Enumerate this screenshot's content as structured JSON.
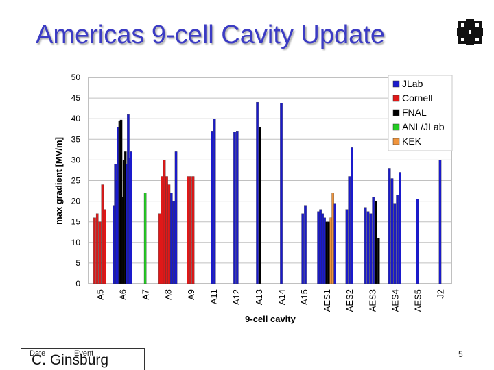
{
  "slide": {
    "title": "Americas 9-cell Cavity Update",
    "footer_date": "Date",
    "footer_event": "Event",
    "footer_author": "C. Ginsburg",
    "page_number": "5",
    "logo_icon": "fermilab-logo-icon"
  },
  "chart_data": {
    "type": "bar",
    "xlabel": "9-cell cavity",
    "ylabel": "max gradient [MV/m]",
    "ylim": [
      0,
      50
    ],
    "yticks": [
      0,
      5,
      10,
      15,
      20,
      25,
      30,
      35,
      40,
      45,
      50
    ],
    "grid": true,
    "legend_position": "top-right",
    "categories": [
      "A5",
      "A6",
      "A7",
      "A8",
      "A9",
      "A11",
      "A12",
      "A13",
      "A14",
      "A15",
      "AES1",
      "AES2",
      "AES3",
      "AES4",
      "AES5",
      "J2"
    ],
    "series": [
      {
        "name": "JLab",
        "color": "#1a1acc"
      },
      {
        "name": "Cornell",
        "color": "#e01818"
      },
      {
        "name": "FNAL",
        "color": "#000000"
      },
      {
        "name": "ANL/JLab",
        "color": "#22cc22"
      },
      {
        "name": "KEK",
        "color": "#f0943c"
      }
    ],
    "bars": [
      {
        "category": "A5",
        "values": [
          16,
          17,
          15,
          24,
          18
        ],
        "series": [
          "Cornell",
          "Cornell",
          "Cornell",
          "Cornell",
          "Cornell"
        ]
      },
      {
        "category": "A6",
        "values": [
          19,
          29,
          25,
          38,
          39.5,
          39.7,
          21,
          30,
          32,
          29,
          41,
          30.5,
          32
        ],
        "series": [
          "JLab",
          "JLab",
          "JLab",
          "JLab",
          "FNAL",
          "FNAL",
          "FNAL",
          "FNAL",
          "FNAL",
          "JLab",
          "JLab",
          "JLab",
          "JLab"
        ]
      },
      {
        "category": "A7",
        "values": [
          22
        ],
        "series": [
          "ANL/JLab"
        ]
      },
      {
        "category": "A8",
        "values": [
          17,
          26,
          30,
          26,
          24,
          22,
          20,
          32
        ],
        "series": [
          "Cornell",
          "Cornell",
          "Cornell",
          "Cornell",
          "Cornell",
          "JLab",
          "JLab",
          "JLab"
        ]
      },
      {
        "category": "A9",
        "values": [
          26,
          26,
          26
        ],
        "series": [
          "Cornell",
          "Cornell",
          "Cornell"
        ]
      },
      {
        "category": "A11",
        "values": [
          37,
          40
        ],
        "series": [
          "JLab",
          "JLab"
        ]
      },
      {
        "category": "A12",
        "values": [
          36.8,
          37
        ],
        "series": [
          "JLab",
          "JLab"
        ]
      },
      {
        "category": "A13",
        "values": [
          44,
          38
        ],
        "series": [
          "JLab",
          "FNAL"
        ]
      },
      {
        "category": "A14",
        "values": [
          43.8
        ],
        "series": [
          "JLab"
        ]
      },
      {
        "category": "A15",
        "values": [
          17,
          19
        ],
        "series": [
          "JLab",
          "JLab"
        ]
      },
      {
        "category": "AES1",
        "values": [
          17.5,
          18,
          17,
          16,
          15,
          15,
          16,
          22,
          19.5
        ],
        "series": [
          "JLab",
          "JLab",
          "JLab",
          "JLab",
          "FNAL",
          "FNAL",
          "KEK",
          "KEK",
          "JLab"
        ]
      },
      {
        "category": "AES2",
        "values": [
          18,
          26,
          33
        ],
        "series": [
          "JLab",
          "JLab",
          "JLab"
        ]
      },
      {
        "category": "AES3",
        "values": [
          18.5,
          17.5,
          17,
          21,
          20,
          11
        ],
        "series": [
          "JLab",
          "JLab",
          "JLab",
          "JLab",
          "FNAL",
          "FNAL"
        ]
      },
      {
        "category": "AES4",
        "values": [
          28,
          25.5,
          19.5,
          21.5,
          27
        ],
        "series": [
          "JLab",
          "JLab",
          "JLab",
          "JLab",
          "JLab"
        ]
      },
      {
        "category": "AES5",
        "values": [
          20.5
        ],
        "series": [
          "JLab"
        ]
      },
      {
        "category": "J2",
        "values": [
          30
        ],
        "series": [
          "JLab"
        ]
      }
    ]
  }
}
